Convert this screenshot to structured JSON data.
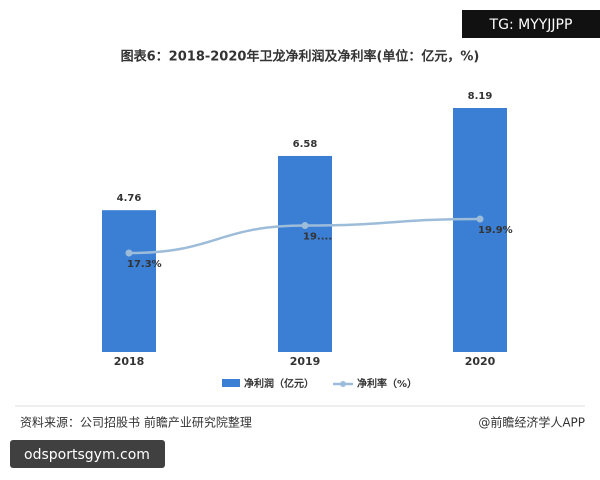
{
  "chart_data": {
    "type": "combo",
    "title": "图表6：2018-2020年卫龙净利润及净利率(单位：亿元，%)",
    "categories": [
      "2018",
      "2019",
      "2020"
    ],
    "series": [
      {
        "name": "净利润（亿元）",
        "type": "bar",
        "color": "#3b7fd4",
        "values": [
          4.76,
          6.58,
          8.19
        ]
      },
      {
        "name": "净利率（%）",
        "type": "line",
        "color": "#9dbcda",
        "axis": "y2",
        "values": [
          17.3,
          19.4,
          19.9
        ],
        "value_labels": [
          "17.3%",
          "19....",
          "19.9%"
        ]
      }
    ],
    "grid": false,
    "legend": "bottom"
  },
  "source": "资料来源：公司招股书 前瞻产业研究院整理",
  "credit": "@前瞻经济学人APP",
  "overlay_top": "TG: MYYJJPP",
  "overlay_bottom": "odsportsgym.com"
}
